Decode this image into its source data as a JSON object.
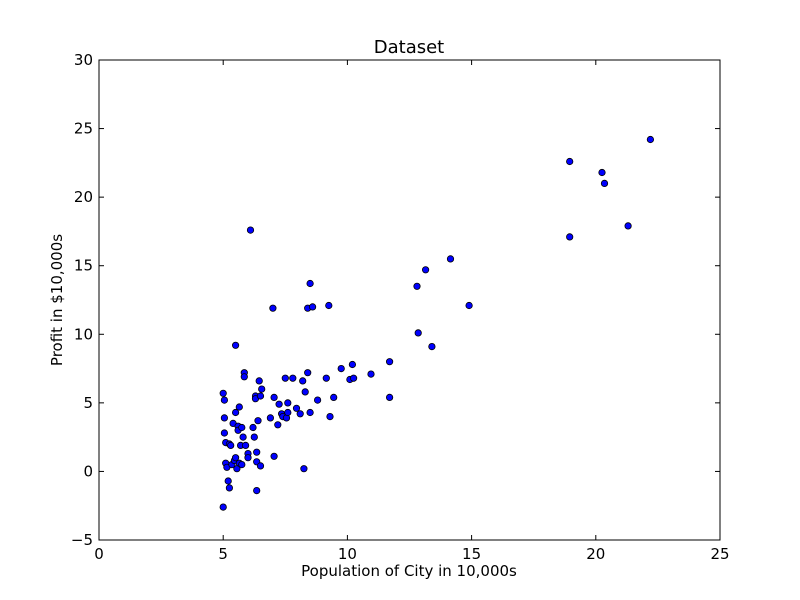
{
  "chart_data": {
    "type": "scatter",
    "title": "Dataset",
    "xlabel": "Population of City in 10,000s",
    "ylabel": "Profit in $10,000s",
    "xlim": [
      0,
      25
    ],
    "ylim": [
      -5,
      30
    ],
    "xticks": [
      "0",
      "5",
      "10",
      "15",
      "20",
      "25"
    ],
    "yticks": [
      "−5",
      "0",
      "5",
      "10",
      "15",
      "20",
      "25",
      "30"
    ],
    "grid": false,
    "legend": "none",
    "marker_color": "#0000ff",
    "marker_edge_color": "#000000",
    "series": [
      {
        "points": [
          [
            5.0,
            -2.6
          ],
          [
            5.0,
            5.7
          ],
          [
            5.05,
            5.2
          ],
          [
            5.05,
            3.9
          ],
          [
            5.05,
            2.8
          ],
          [
            5.1,
            2.1
          ],
          [
            5.1,
            0.6
          ],
          [
            5.15,
            0.3
          ],
          [
            5.2,
            -0.7
          ],
          [
            5.25,
            -1.2
          ],
          [
            5.25,
            2.0
          ],
          [
            5.3,
            1.9
          ],
          [
            5.35,
            0.5
          ],
          [
            5.4,
            3.5
          ],
          [
            5.45,
            0.8
          ],
          [
            5.5,
            4.3
          ],
          [
            5.5,
            9.2
          ],
          [
            5.5,
            1.0
          ],
          [
            5.55,
            0.2
          ],
          [
            5.6,
            3.3
          ],
          [
            5.6,
            3.0
          ],
          [
            5.65,
            4.7
          ],
          [
            5.65,
            0.6
          ],
          [
            5.7,
            1.9
          ],
          [
            5.75,
            3.2
          ],
          [
            5.75,
            0.5
          ],
          [
            5.8,
            2.5
          ],
          [
            5.85,
            7.2
          ],
          [
            5.85,
            6.9
          ],
          [
            5.9,
            1.9
          ],
          [
            6.0,
            1.3
          ],
          [
            6.0,
            1.0
          ],
          [
            6.1,
            17.6
          ],
          [
            6.2,
            3.2
          ],
          [
            6.25,
            2.5
          ],
          [
            6.3,
            5.5
          ],
          [
            6.3,
            5.3
          ],
          [
            6.35,
            1.4
          ],
          [
            6.35,
            0.7
          ],
          [
            6.35,
            -1.4
          ],
          [
            6.4,
            3.7
          ],
          [
            6.45,
            6.6
          ],
          [
            6.5,
            5.5
          ],
          [
            6.5,
            0.4
          ],
          [
            6.55,
            6.0
          ],
          [
            6.9,
            3.9
          ],
          [
            7.0,
            11.9
          ],
          [
            7.05,
            5.4
          ],
          [
            7.05,
            1.1
          ],
          [
            7.2,
            3.4
          ],
          [
            7.25,
            4.9
          ],
          [
            7.35,
            4.2
          ],
          [
            7.4,
            4.0
          ],
          [
            7.5,
            6.8
          ],
          [
            7.55,
            3.9
          ],
          [
            7.6,
            4.3
          ],
          [
            7.6,
            5.0
          ],
          [
            7.8,
            6.8
          ],
          [
            7.95,
            4.6
          ],
          [
            8.1,
            4.2
          ],
          [
            8.2,
            6.6
          ],
          [
            8.25,
            0.2
          ],
          [
            8.3,
            5.8
          ],
          [
            8.4,
            11.9
          ],
          [
            8.4,
            7.2
          ],
          [
            8.5,
            13.7
          ],
          [
            8.5,
            4.3
          ],
          [
            8.6,
            12.0
          ],
          [
            8.8,
            5.2
          ],
          [
            9.15,
            6.8
          ],
          [
            9.25,
            12.1
          ],
          [
            9.3,
            4.0
          ],
          [
            9.45,
            5.4
          ],
          [
            9.75,
            7.5
          ],
          [
            10.1,
            6.7
          ],
          [
            10.2,
            7.8
          ],
          [
            10.25,
            6.8
          ],
          [
            10.95,
            7.1
          ],
          [
            11.7,
            8.0
          ],
          [
            11.7,
            5.4
          ],
          [
            12.8,
            13.5
          ],
          [
            12.85,
            10.1
          ],
          [
            13.15,
            14.7
          ],
          [
            13.4,
            9.1
          ],
          [
            14.15,
            15.5
          ],
          [
            14.9,
            12.1
          ],
          [
            18.95,
            22.6
          ],
          [
            18.95,
            17.1
          ],
          [
            20.25,
            21.8
          ],
          [
            20.35,
            21.0
          ],
          [
            21.3,
            17.9
          ],
          [
            22.2,
            24.2
          ]
        ]
      }
    ]
  }
}
